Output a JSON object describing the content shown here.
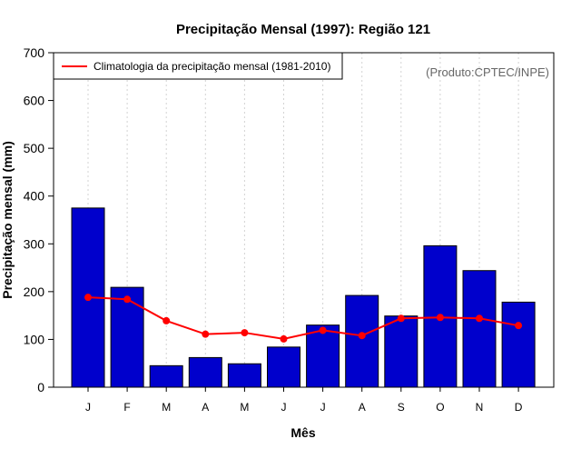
{
  "chart_data": {
    "type": "bar",
    "title": "Precipitação Mensal (1997): Região 121",
    "xlabel": "Mês",
    "ylabel": "Precipitação mensal (mm)",
    "ylim": [
      0,
      700
    ],
    "yticks": [
      0,
      100,
      200,
      300,
      400,
      500,
      600,
      700
    ],
    "grid": "vertical dotted",
    "categories": [
      "J",
      "F",
      "M",
      "A",
      "M",
      "J",
      "J",
      "A",
      "S",
      "O",
      "N",
      "D"
    ],
    "series": [
      {
        "name": "Precipitação mensal 1997",
        "type": "bar",
        "color": "#0000cc",
        "values": [
          375,
          209,
          45,
          62,
          49,
          84,
          130,
          192,
          149,
          296,
          244,
          178
        ]
      },
      {
        "name": "Climatologia da precipitação mensal (1981-2010)",
        "type": "line",
        "color": "#ff0000",
        "values": [
          188,
          184,
          139,
          111,
          114,
          101,
          119,
          108,
          144,
          146,
          144,
          129
        ]
      }
    ],
    "legend": {
      "position": "top-left",
      "label": "Climatologia da precipitação mensal (1981-2010)"
    },
    "annotation": "(Produto:CPTEC/INPE)"
  }
}
